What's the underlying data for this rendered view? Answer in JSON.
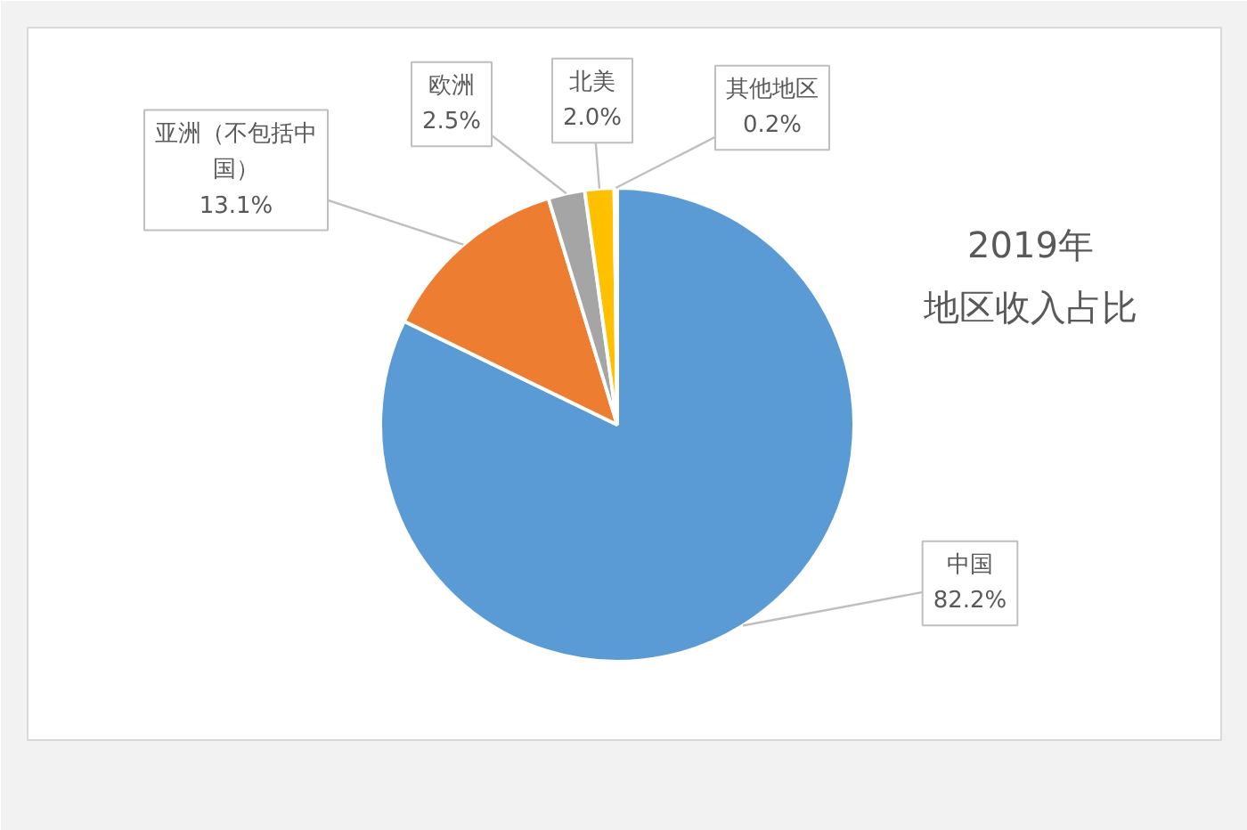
{
  "chart_data": {
    "type": "pie",
    "title": "2019年",
    "subtitle": "地区收入占比",
    "categories": [
      "中国",
      "亚洲（不包括中国）",
      "欧洲",
      "北美",
      "其他地区"
    ],
    "values": [
      82.2,
      13.1,
      2.5,
      2.0,
      0.2
    ],
    "value_labels": [
      "82.2%",
      "13.1%",
      "2.5%",
      "2.0%",
      "0.2%"
    ],
    "colors": [
      "#5b9bd5",
      "#ed7d31",
      "#a5a5a5",
      "#ffc000",
      "#4472c4"
    ]
  }
}
